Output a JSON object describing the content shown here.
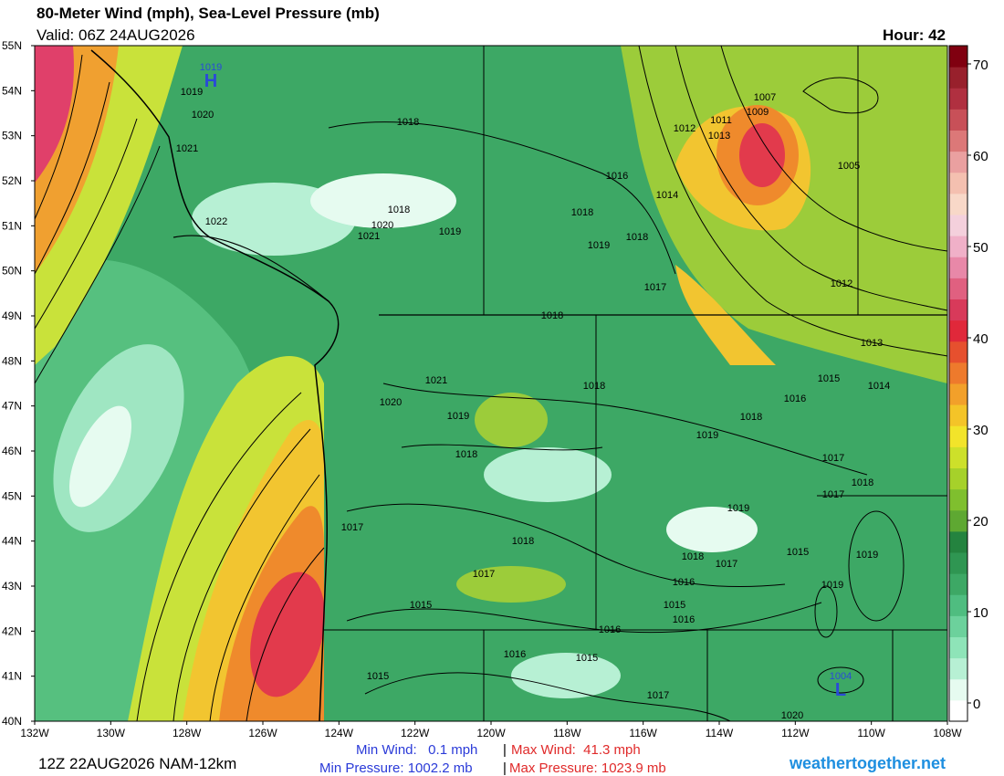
{
  "header": {
    "title": "80-Meter Wind (mph), Sea-Level Pressure (mb)",
    "valid": "Valid: 06Z 24AUG2026",
    "hour": "Hour: 42"
  },
  "map": {
    "lat_labels": [
      "55N",
      "54N",
      "53N",
      "52N",
      "51N",
      "50N",
      "49N",
      "48N",
      "47N",
      "46N",
      "45N",
      "44N",
      "43N",
      "42N",
      "41N",
      "40N"
    ],
    "lon_labels": [
      "132W",
      "130W",
      "128W",
      "126W",
      "124W",
      "122W",
      "120W",
      "118W",
      "116W",
      "114W",
      "112W",
      "110W",
      "108W"
    ],
    "pressure_centers": [
      {
        "symbol": "H",
        "value": "1019"
      },
      {
        "symbol": "L",
        "value": "1004"
      }
    ],
    "isobar_labels": [
      "1018",
      "1012",
      "1011",
      "1013",
      "1009",
      "1007",
      "1005",
      "1016",
      "1014",
      "1018",
      "1020",
      "1021",
      "1019",
      "1018",
      "1018",
      "1019",
      "1017",
      "1012",
      "1022",
      "1021",
      "1020",
      "1019",
      "1018",
      "1013",
      "1015",
      "1014",
      "1016",
      "1021",
      "1020",
      "1018",
      "1019",
      "1018",
      "1019",
      "1017",
      "1018",
      "1018",
      "1017",
      "1019",
      "1017",
      "1018",
      "1015",
      "1019",
      "1018",
      "1017",
      "1017",
      "1019",
      "1016",
      "1015",
      "1015",
      "1016",
      "1016",
      "1016",
      "1015",
      "1015",
      "1017",
      "1020"
    ]
  },
  "colorbar": {
    "ticks": [
      70,
      60,
      50,
      40,
      30,
      20,
      10,
      0
    ]
  },
  "footer": {
    "run": "12Z 22AUG2026 NAM-12km",
    "min_wind": "Min Wind:   0.1 mph",
    "separator": "|",
    "max_wind": "Max Wind:  41.3 mph",
    "min_pressure": "Min Pressure: 1002.2 mb",
    "max_pressure": "Max Pressure: 1023.9 mb",
    "site": "weathertogether.net"
  }
}
